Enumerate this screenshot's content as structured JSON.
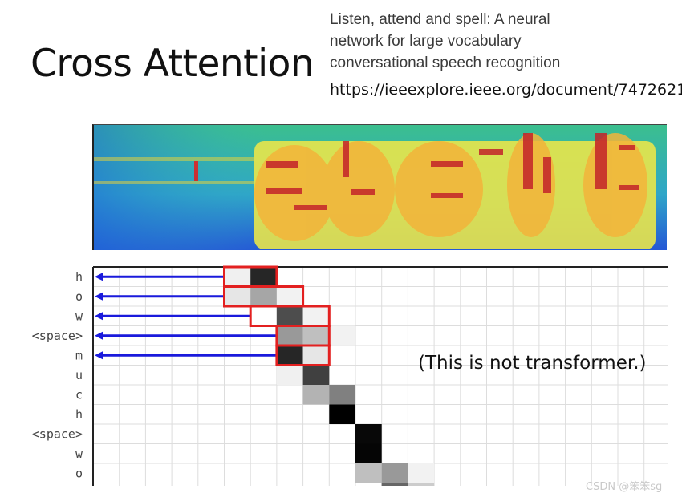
{
  "slide": {
    "title": "Cross Attention",
    "reference": {
      "lines": [
        "Listen, attend and spell: A neural",
        "network for large vocabulary",
        "conversational speech recognition"
      ],
      "url": "https://ieeexplore.ieee.org/document/7472621"
    },
    "note": "(This is not transformer.)",
    "watermark": "CSDN @笨笨sg"
  },
  "diagram": {
    "output_tokens": [
      "h",
      "o",
      "w",
      "<space>",
      "m",
      "u",
      "c",
      "h",
      "<space>",
      "w",
      "o"
    ],
    "attention_cells": [
      {
        "row": 0,
        "col": 5,
        "weight": 0.06
      },
      {
        "row": 0,
        "col": 6,
        "weight": 0.85
      },
      {
        "row": 1,
        "col": 5,
        "weight": 0.1
      },
      {
        "row": 1,
        "col": 6,
        "weight": 0.35
      },
      {
        "row": 1,
        "col": 7,
        "weight": 0.05
      },
      {
        "row": 2,
        "col": 7,
        "weight": 0.7
      },
      {
        "row": 2,
        "col": 8,
        "weight": 0.05
      },
      {
        "row": 3,
        "col": 7,
        "weight": 0.4
      },
      {
        "row": 3,
        "col": 8,
        "weight": 0.25
      },
      {
        "row": 3,
        "col": 9,
        "weight": 0.05
      },
      {
        "row": 4,
        "col": 7,
        "weight": 0.85
      },
      {
        "row": 4,
        "col": 8,
        "weight": 0.1
      },
      {
        "row": 5,
        "col": 7,
        "weight": 0.06
      },
      {
        "row": 5,
        "col": 8,
        "weight": 0.75
      },
      {
        "row": 6,
        "col": 8,
        "weight": 0.3
      },
      {
        "row": 6,
        "col": 9,
        "weight": 0.5
      },
      {
        "row": 7,
        "col": 9,
        "weight": 1.0
      },
      {
        "row": 8,
        "col": 10,
        "weight": 0.97
      },
      {
        "row": 9,
        "col": 10,
        "weight": 0.98
      },
      {
        "row": 10,
        "col": 10,
        "weight": 0.25
      },
      {
        "row": 10,
        "col": 11,
        "weight": 0.4
      },
      {
        "row": 10,
        "col": 12,
        "weight": 0.05
      },
      {
        "row": 11,
        "col": 11,
        "weight": 0.6
      },
      {
        "row": 11,
        "col": 12,
        "weight": 0.2
      }
    ],
    "highlight_windows": [
      {
        "row": 0,
        "col_start": 5,
        "col_end": 6
      },
      {
        "row": 1,
        "col_start": 5,
        "col_end": 7
      },
      {
        "row": 2,
        "col_start": 6,
        "col_end": 8
      },
      {
        "row": 3,
        "col_start": 7,
        "col_end": 8
      },
      {
        "row": 4,
        "col_start": 7,
        "col_end": 8
      }
    ],
    "arrow_rows": [
      0,
      1,
      2,
      3,
      4
    ],
    "colors": {
      "arrow": "#1a1adc",
      "highlight_box": "#e32020",
      "grid": "#dddddd",
      "axis": "#222222"
    }
  }
}
